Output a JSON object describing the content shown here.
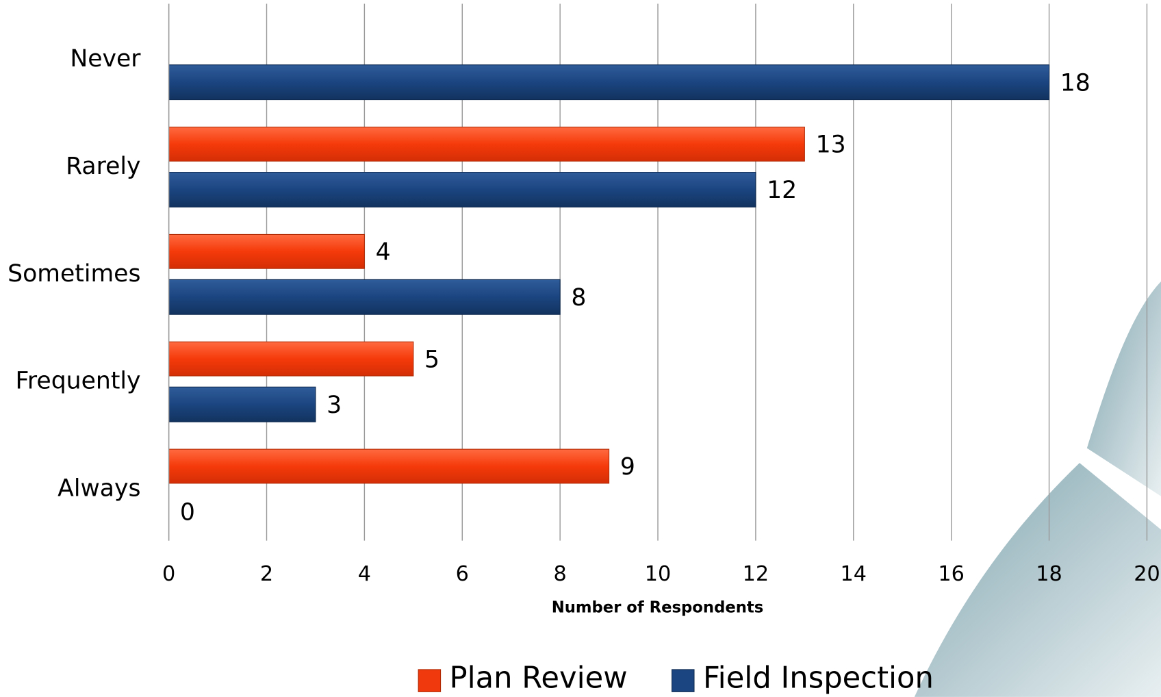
{
  "chart_data": {
    "type": "bar",
    "orientation": "horizontal",
    "x_label": "Number of Respondents",
    "categories": [
      "Never",
      "Rarely",
      "Sometimes",
      "Frequently",
      "Always"
    ],
    "series": [
      {
        "name": "Plan Review",
        "color": "#f03a0e",
        "values": [
          null,
          13,
          4,
          5,
          9
        ]
      },
      {
        "name": "Field Inspection",
        "color": "#1b4580",
        "values": [
          18,
          12,
          8,
          3,
          0
        ]
      }
    ],
    "xlim": [
      0,
      20
    ],
    "xticks": [
      0,
      2,
      4,
      6,
      8,
      10,
      12,
      14,
      16,
      18,
      20
    ],
    "grid": true,
    "legend": "bottom"
  }
}
